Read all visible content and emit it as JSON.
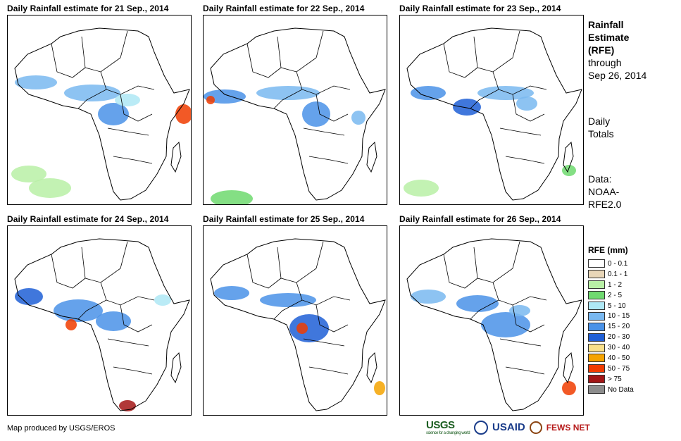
{
  "panels": [
    {
      "title": "Daily Rainfall estimate for 21 Sep., 2014"
    },
    {
      "title": "Daily Rainfall estimate for 22 Sep., 2014"
    },
    {
      "title": "Daily Rainfall estimate for 23 Sep., 2014"
    },
    {
      "title": "Daily Rainfall estimate for 24 Sep., 2014"
    },
    {
      "title": "Daily Rainfall estimate for 25 Sep., 2014"
    },
    {
      "title": "Daily Rainfall estimate for 26 Sep., 2014"
    }
  ],
  "side": {
    "heading_1": "Rainfall",
    "heading_2": "Estimate",
    "heading_3": "(RFE)",
    "through": "through",
    "date": "Sep 26, 2014",
    "totals_1": "Daily",
    "totals_2": "Totals",
    "data_1": "Data:",
    "data_2": "NOAA-",
    "data_3": "RFE2.0"
  },
  "legend": {
    "title": "RFE (mm)",
    "items": [
      {
        "label": "0 - 0.1",
        "color": "#ffffff"
      },
      {
        "label": "0.1 - 1",
        "color": "#e8d6b8"
      },
      {
        "label": "1 - 2",
        "color": "#b9f0a6"
      },
      {
        "label": "2 - 5",
        "color": "#6fd96f"
      },
      {
        "label": "5 - 10",
        "color": "#aee8f5"
      },
      {
        "label": "10 - 15",
        "color": "#79b8f0"
      },
      {
        "label": "15 - 20",
        "color": "#4a92e8"
      },
      {
        "label": "20 - 30",
        "color": "#1f5fd6"
      },
      {
        "label": "30 - 40",
        "color": "#f9e08a"
      },
      {
        "label": "40 - 50",
        "color": "#f5a300"
      },
      {
        "label": "50 - 75",
        "color": "#f03c00"
      },
      {
        "label": "> 75",
        "color": "#a31515"
      },
      {
        "label": "No Data",
        "color": "#8c8c8c"
      }
    ]
  },
  "credit": "Map produced by USGS/EROS",
  "logos": {
    "usgs": "USGS",
    "usgs_tagline": "science for a changing world",
    "usaid": "USAID",
    "fews": "FEWS NET"
  }
}
